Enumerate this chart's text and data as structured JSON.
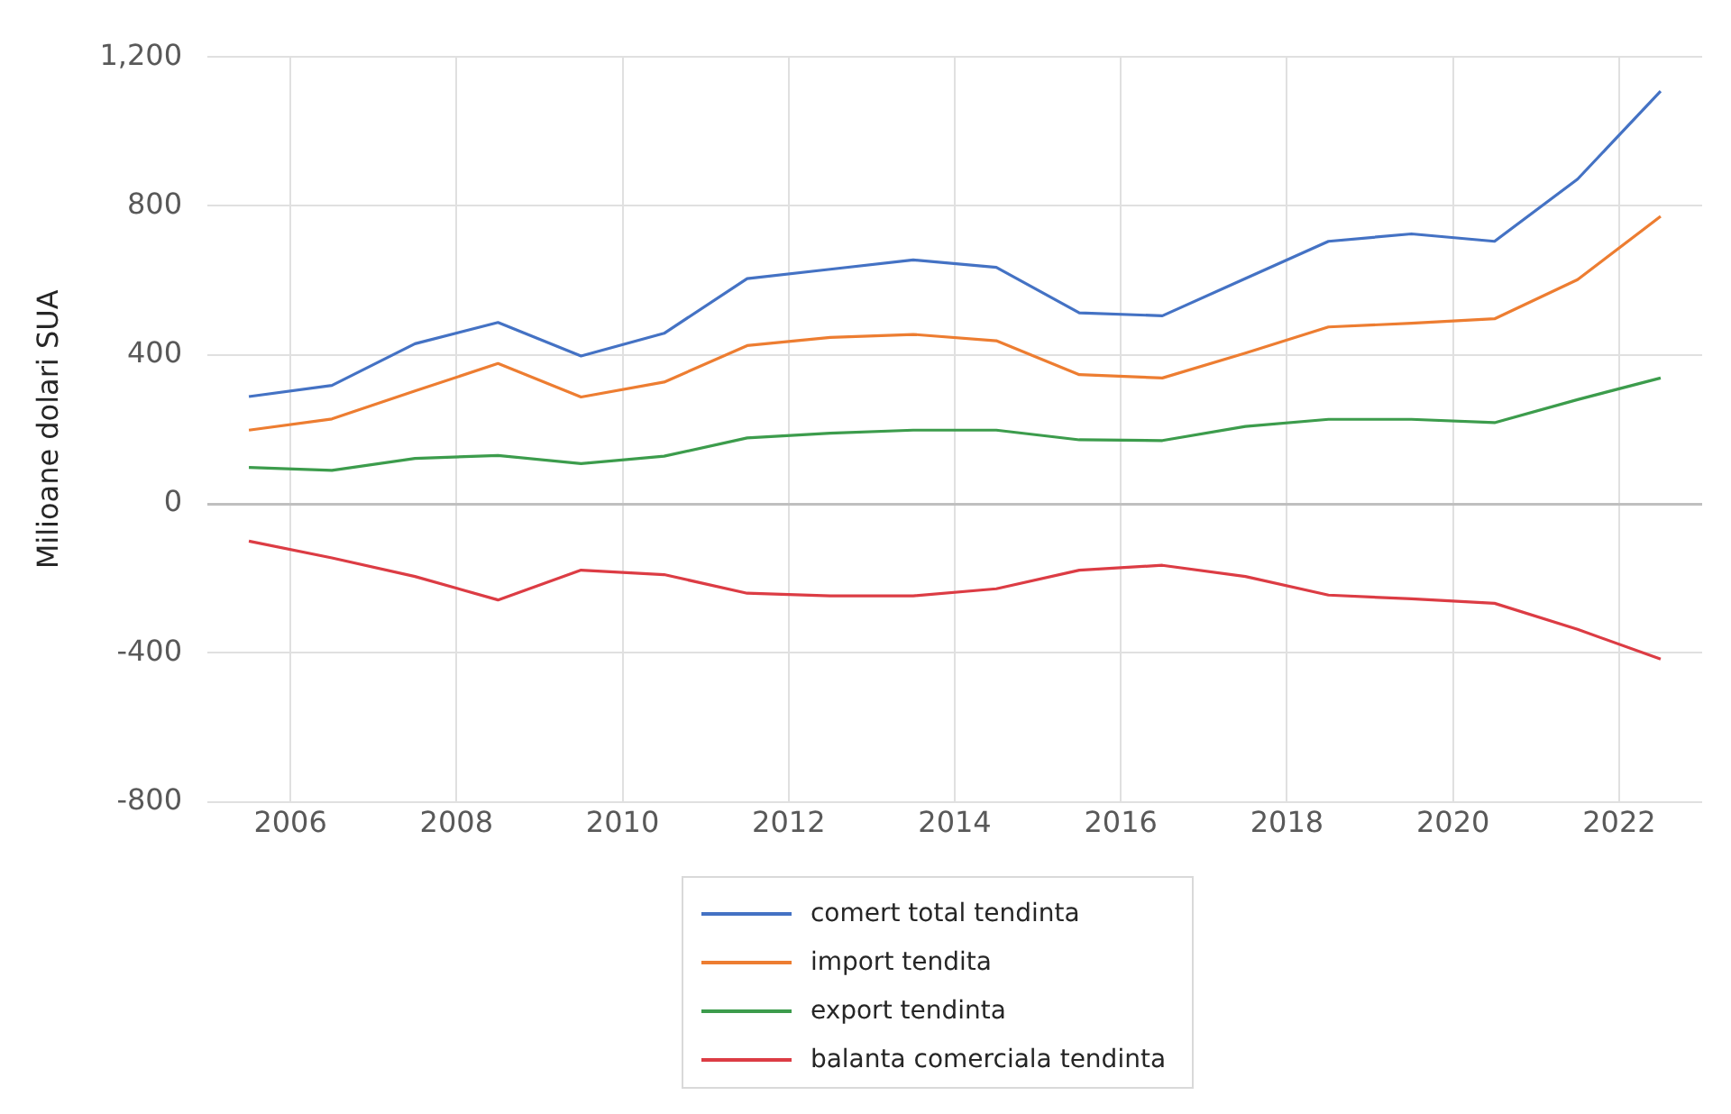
{
  "chart_data": {
    "type": "line",
    "ylabel": "Milioane dolari SUA",
    "x": [
      2005.5,
      2006.5,
      2007.5,
      2008.5,
      2009.5,
      2010.5,
      2011.5,
      2012.5,
      2013.5,
      2014.5,
      2015.5,
      2016.5,
      2017.5,
      2018.5,
      2019.5,
      2020.5,
      2021.5,
      2022.5
    ],
    "xlim": [
      2005,
      2023
    ],
    "xticks": [
      2006,
      2008,
      2010,
      2012,
      2014,
      2016,
      2018,
      2020,
      2022
    ],
    "ylim": [
      -800,
      1200
    ],
    "yticks": [
      -800,
      -400,
      0,
      400,
      800,
      {
        "value": 1200,
        "label": "1,200"
      }
    ],
    "grid": true,
    "legend": "bottom",
    "marker": "none",
    "line_style": "solid",
    "series": [
      {
        "name": "comert total tendinta",
        "color": "#4472c4",
        "values": [
          288,
          318,
          430,
          487,
          397,
          458,
          605,
          630,
          655,
          635,
          513,
          505,
          605,
          705,
          725,
          705,
          872,
          1108
        ]
      },
      {
        "name": "import tendita",
        "color": "#ed7d31",
        "values": [
          198,
          228,
          303,
          377,
          287,
          327,
          425,
          447,
          455,
          438,
          347,
          338,
          405,
          475,
          485,
          497,
          602,
          772
        ]
      },
      {
        "name": "export tendinta",
        "color": "#3c9c4c",
        "values": [
          98,
          90,
          122,
          130,
          108,
          128,
          177,
          190,
          198,
          198,
          172,
          170,
          208,
          227,
          227,
          218,
          280,
          338
        ]
      },
      {
        "name": "balanta comerciala tendinta",
        "color": "#dc3c44",
        "values": [
          -100,
          -145,
          -195,
          -258,
          -178,
          -190,
          -240,
          -247,
          -247,
          -228,
          -178,
          -165,
          -195,
          -245,
          -255,
          -267,
          -337,
          -417
        ]
      }
    ]
  }
}
